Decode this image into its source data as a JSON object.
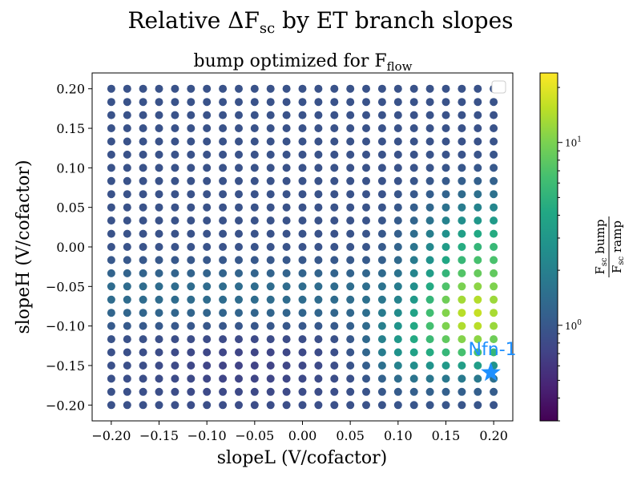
{
  "chart_data": {
    "type": "scatter",
    "title": {
      "prefix": "Relative ΔF",
      "sub": "sc",
      "suffix": " by ET branch slopes"
    },
    "subtitle": {
      "prefix": "bump optimized for F",
      "sub": "flow"
    },
    "xlabel": "slopeL (V/cofactor)",
    "ylabel": "slopeH (V/cofactor)",
    "xlim": [
      -0.22,
      0.22
    ],
    "ylim": [
      -0.22,
      0.22
    ],
    "x_ticks": [
      -0.2,
      -0.15,
      -0.1,
      -0.05,
      0.0,
      0.05,
      0.1,
      0.15,
      0.2
    ],
    "y_ticks": [
      -0.2,
      -0.15,
      -0.1,
      -0.05,
      0.0,
      0.05,
      0.1,
      0.15,
      0.2
    ],
    "x_tick_labels": [
      "−0.20",
      "−0.15",
      "−0.10",
      "−0.05",
      "0.00",
      "0.05",
      "0.10",
      "0.15",
      "0.20"
    ],
    "y_tick_labels": [
      "−0.20",
      "−0.15",
      "−0.10",
      "−0.05",
      "0.00",
      "0.05",
      "0.10",
      "0.15",
      "0.20"
    ],
    "grid": {
      "min": -0.2,
      "max": 0.2,
      "n": 25
    },
    "colorbar": {
      "scale": "log",
      "range": [
        0.3,
        24
      ],
      "colormap": "viridis",
      "major_ticks": [
        {
          "value": 1,
          "base": "10",
          "exp": "0"
        },
        {
          "value": 10,
          "base": "10",
          "exp": "1"
        }
      ],
      "label": {
        "num_main": "F",
        "num_sub": "sc",
        "num_tail": " bump",
        "den_main": "F",
        "den_sub": "sc",
        "den_tail": " ramp"
      }
    },
    "annotation": {
      "label": "Nfn-1",
      "x": 0.197,
      "y": -0.159,
      "marker": "star",
      "color": "#1E90FF"
    },
    "legend": {
      "placement": "upper-right",
      "entries": []
    }
  }
}
